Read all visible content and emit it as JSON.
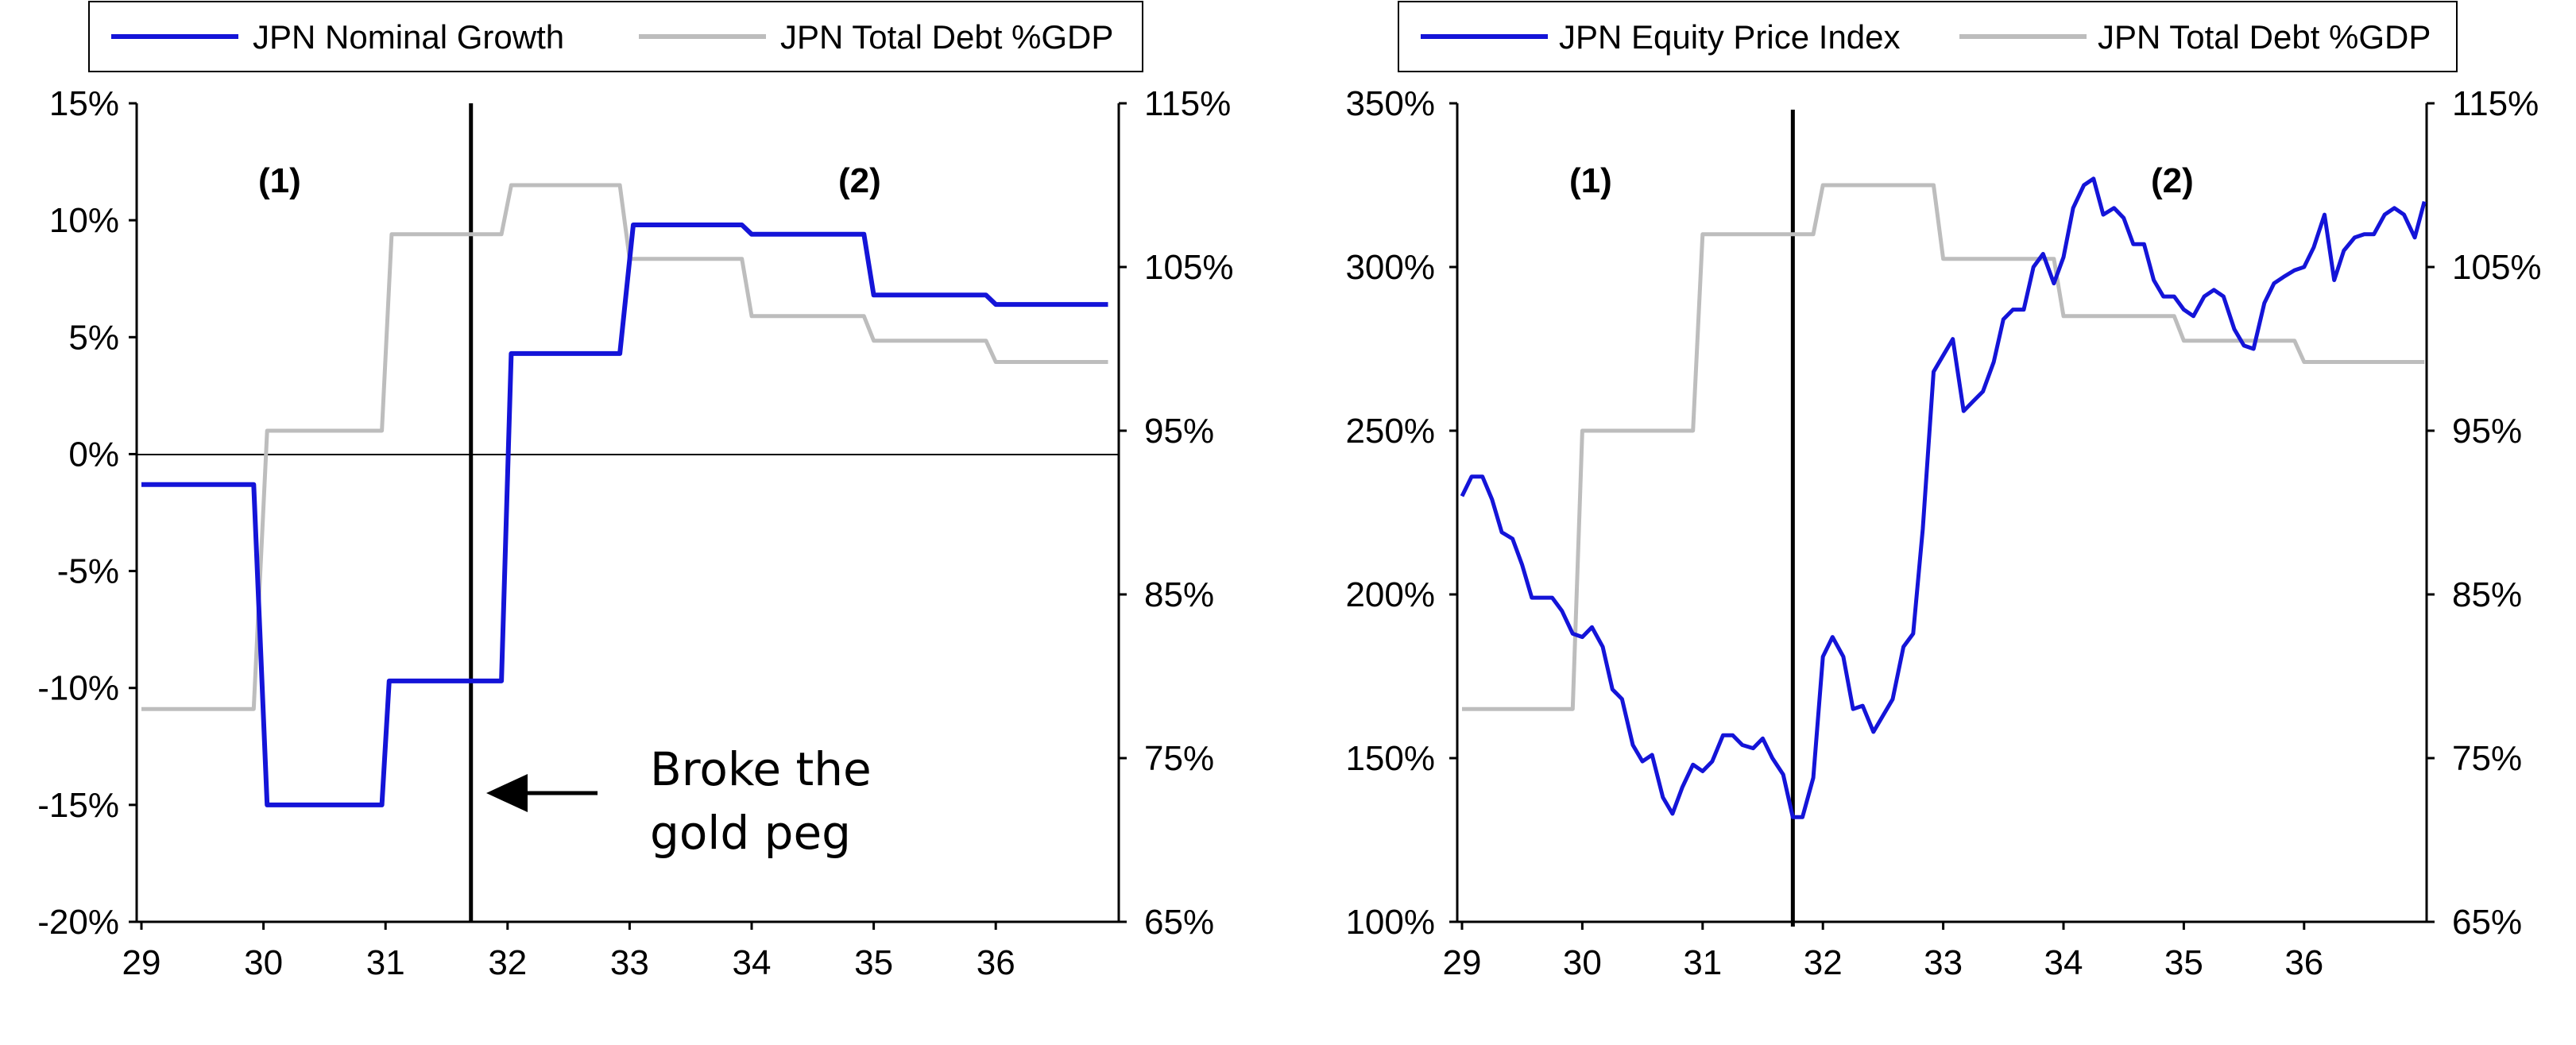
{
  "colors": {
    "blue": "#1414d8",
    "gray": "#bdbdbd",
    "black": "#000000"
  },
  "chart_data": [
    {
      "type": "line",
      "x_ticks": [
        "29",
        "30",
        "31",
        "32",
        "33",
        "34",
        "35",
        "36"
      ],
      "xlim": [
        29,
        37
      ],
      "left_axis": {
        "ticks": [
          "15%",
          "10%",
          "5%",
          "0%",
          "-5%",
          "-10%",
          "-15%",
          "-20%"
        ],
        "ylim": [
          -20,
          15
        ]
      },
      "right_axis": {
        "ticks": [
          "115%",
          "105%",
          "95%",
          "85%",
          "75%",
          "65%"
        ],
        "ylim": [
          65,
          115
        ]
      },
      "legend": [
        "JPN Nominal Growth",
        "JPN Total Debt %GDP"
      ],
      "legend_position": "top",
      "regions": [
        "(1)",
        "(2)"
      ],
      "vertical_marker_x": 31.7,
      "annotation": {
        "line1": "Broke the",
        "line2": "gold peg"
      },
      "series": [
        {
          "name": "JPN Nominal Growth",
          "axis": "left",
          "points": [
            [
              29.0,
              -1.3
            ],
            [
              29.92,
              -1.3
            ],
            [
              30.03,
              -15.0
            ],
            [
              30.97,
              -15.0
            ],
            [
              31.03,
              -9.7
            ],
            [
              31.95,
              -9.7
            ],
            [
              32.03,
              4.3
            ],
            [
              32.92,
              4.3
            ],
            [
              33.03,
              9.8
            ],
            [
              33.92,
              9.8
            ],
            [
              34.0,
              9.4
            ],
            [
              34.92,
              9.4
            ],
            [
              35.0,
              6.8
            ],
            [
              35.92,
              6.8
            ],
            [
              36.0,
              6.4
            ],
            [
              36.92,
              6.4
            ]
          ]
        },
        {
          "name": "JPN Total Debt %GDP",
          "axis": "right",
          "points": [
            [
              29.0,
              78
            ],
            [
              29.92,
              78
            ],
            [
              30.03,
              95
            ],
            [
              30.97,
              95
            ],
            [
              31.05,
              107
            ],
            [
              31.95,
              107
            ],
            [
              32.03,
              110
            ],
            [
              32.92,
              110
            ],
            [
              33.0,
              105.5
            ],
            [
              33.92,
              105.5
            ],
            [
              34.0,
              102
            ],
            [
              34.92,
              102
            ],
            [
              35.0,
              100.5
            ],
            [
              35.92,
              100.5
            ],
            [
              36.0,
              99.2
            ],
            [
              36.92,
              99.2
            ]
          ]
        }
      ]
    },
    {
      "type": "line",
      "x_ticks": [
        "29",
        "30",
        "31",
        "32",
        "33",
        "34",
        "35",
        "36"
      ],
      "xlim": [
        29,
        37
      ],
      "left_axis": {
        "ticks": [
          "350%",
          "300%",
          "250%",
          "200%",
          "150%",
          "100%"
        ],
        "ylim": [
          100,
          350
        ]
      },
      "right_axis": {
        "ticks": [
          "115%",
          "105%",
          "95%",
          "85%",
          "75%",
          "65%"
        ],
        "ylim": [
          65,
          115
        ]
      },
      "legend": [
        "JPN Equity Price Index",
        "JPN Total Debt %GDP"
      ],
      "legend_position": "top",
      "regions": [
        "(1)",
        "(2)"
      ],
      "vertical_marker_x": 31.75,
      "series": [
        {
          "name": "JPN Equity Price Index",
          "axis": "left",
          "points": [
            [
              29.0,
              230
            ],
            [
              29.08,
              236
            ],
            [
              29.17,
              236
            ],
            [
              29.25,
              229
            ],
            [
              29.33,
              219
            ],
            [
              29.42,
              217
            ],
            [
              29.5,
              209
            ],
            [
              29.58,
              199
            ],
            [
              29.67,
              199
            ],
            [
              29.75,
              199
            ],
            [
              29.83,
              195
            ],
            [
              29.92,
              188
            ],
            [
              30.0,
              187
            ],
            [
              30.08,
              190
            ],
            [
              30.17,
              184
            ],
            [
              30.25,
              171
            ],
            [
              30.33,
              168
            ],
            [
              30.42,
              154
            ],
            [
              30.5,
              149
            ],
            [
              30.58,
              151
            ],
            [
              30.67,
              138
            ],
            [
              30.75,
              133
            ],
            [
              30.83,
              141
            ],
            [
              30.92,
              148
            ],
            [
              31.0,
              146
            ],
            [
              31.08,
              149
            ],
            [
              31.17,
              157
            ],
            [
              31.25,
              157
            ],
            [
              31.33,
              154
            ],
            [
              31.42,
              153
            ],
            [
              31.5,
              156
            ],
            [
              31.58,
              150
            ],
            [
              31.67,
              145
            ],
            [
              31.75,
              132
            ],
            [
              31.83,
              132
            ],
            [
              31.92,
              144
            ],
            [
              32.0,
              181
            ],
            [
              32.08,
              187
            ],
            [
              32.17,
              181
            ],
            [
              32.25,
              165
            ],
            [
              32.33,
              166
            ],
            [
              32.42,
              158
            ],
            [
              32.5,
              163
            ],
            [
              32.58,
              168
            ],
            [
              32.67,
              184
            ],
            [
              32.75,
              188
            ],
            [
              32.83,
              220
            ],
            [
              32.92,
              268
            ],
            [
              33.0,
              273
            ],
            [
              33.08,
              278
            ],
            [
              33.17,
              256
            ],
            [
              33.25,
              259
            ],
            [
              33.33,
              262
            ],
            [
              33.42,
              271
            ],
            [
              33.5,
              284
            ],
            [
              33.58,
              287
            ],
            [
              33.67,
              287
            ],
            [
              33.75,
              300
            ],
            [
              33.83,
              304
            ],
            [
              33.92,
              295
            ],
            [
              34.0,
              303
            ],
            [
              34.08,
              318
            ],
            [
              34.17,
              325
            ],
            [
              34.25,
              327
            ],
            [
              34.33,
              316
            ],
            [
              34.42,
              318
            ],
            [
              34.5,
              315
            ],
            [
              34.58,
              307
            ],
            [
              34.67,
              307
            ],
            [
              34.75,
              296
            ],
            [
              34.83,
              291
            ],
            [
              34.92,
              291
            ],
            [
              35.0,
              287
            ],
            [
              35.08,
              285
            ],
            [
              35.17,
              291
            ],
            [
              35.25,
              293
            ],
            [
              35.33,
              291
            ],
            [
              35.42,
              281
            ],
            [
              35.5,
              276
            ],
            [
              35.58,
              275
            ],
            [
              35.67,
              289
            ],
            [
              35.75,
              295
            ],
            [
              35.83,
              297
            ],
            [
              35.92,
              299
            ],
            [
              36.0,
              300
            ],
            [
              36.08,
              306
            ],
            [
              36.17,
              316
            ],
            [
              36.25,
              296
            ],
            [
              36.33,
              305
            ],
            [
              36.42,
              309
            ],
            [
              36.5,
              310
            ],
            [
              36.58,
              310
            ],
            [
              36.67,
              316
            ],
            [
              36.75,
              318
            ],
            [
              36.83,
              316
            ],
            [
              36.92,
              309
            ],
            [
              37.0,
              320
            ]
          ]
        },
        {
          "name": "JPN Total Debt %GDP",
          "axis": "right",
          "points": [
            [
              29.0,
              78
            ],
            [
              29.92,
              78
            ],
            [
              30.0,
              95
            ],
            [
              30.92,
              95
            ],
            [
              31.0,
              107
            ],
            [
              31.92,
              107
            ],
            [
              32.0,
              110
            ],
            [
              32.92,
              110
            ],
            [
              33.0,
              105.5
            ],
            [
              33.92,
              105.5
            ],
            [
              34.0,
              102
            ],
            [
              34.92,
              102
            ],
            [
              35.0,
              100.5
            ],
            [
              35.92,
              100.5
            ],
            [
              36.0,
              99.2
            ],
            [
              37.0,
              99.2
            ]
          ]
        }
      ]
    }
  ]
}
